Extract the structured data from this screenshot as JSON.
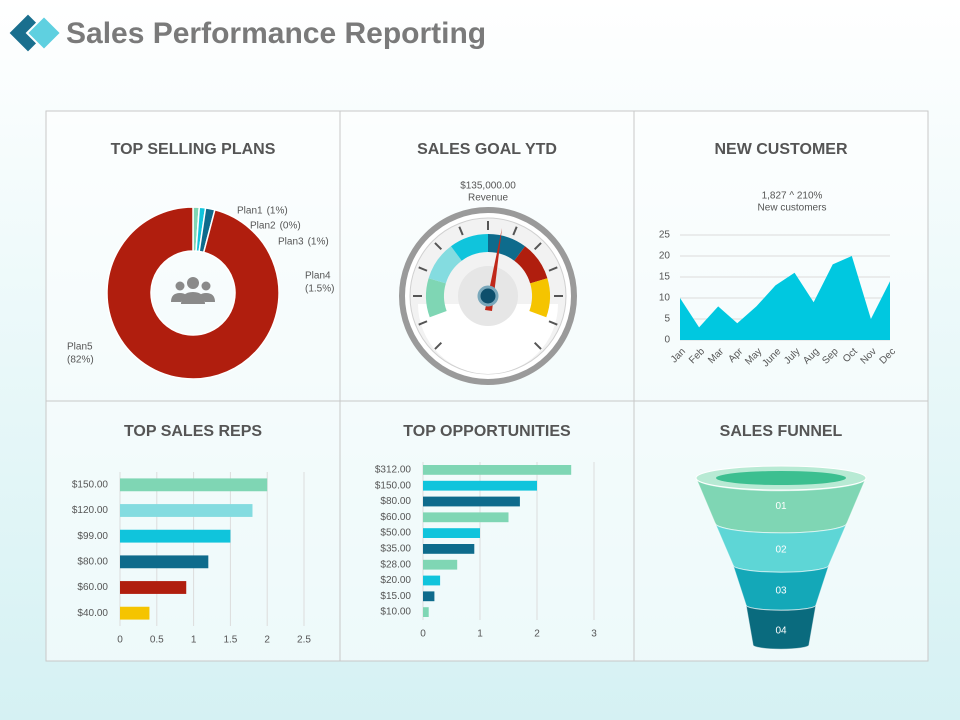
{
  "title": "Sales Performance Reporting",
  "chart_data": [
    {
      "type": "pie",
      "title": "TOP SELLING PLANS",
      "categories": [
        "Plan1",
        "Plan2",
        "Plan3",
        "Plan4",
        "Plan5"
      ],
      "values": [
        1,
        0,
        1,
        1.5,
        82
      ],
      "value_labels": [
        "(1%)",
        "(0%)",
        "(1%)",
        "(1.5%)",
        "(82%)"
      ],
      "colors": [
        "#7fd6b4",
        "#84dce0",
        "#10c4dc",
        "#0e6b8c",
        "#b01e0e"
      ]
    },
    {
      "type": "gauge",
      "title": "SALES GOAL YTD",
      "annotation": "$135,000.00",
      "label": "Revenue",
      "colors": [
        "#7fd6b4",
        "#84dce0",
        "#10c4dc",
        "#0e6b8c",
        "#b01e0e",
        "#f5c400"
      ]
    },
    {
      "type": "area",
      "title": "NEW CUSTOMER",
      "annotation": "1,827 ^ 210%",
      "label": "New customers",
      "categories": [
        "Jan",
        "Feb",
        "Mar",
        "Apr",
        "May",
        "June",
        "July",
        "Aug",
        "Sep",
        "Oct",
        "Nov",
        "Dec"
      ],
      "values": [
        10,
        3,
        8,
        4,
        8,
        13,
        16,
        9,
        18,
        20,
        5,
        14
      ],
      "color": "#00c8e0",
      "ylim": [
        0,
        25
      ],
      "yticks": [
        0,
        5,
        10,
        15,
        20,
        25
      ],
      "grid": true
    },
    {
      "type": "barh",
      "title": "TOP SALES REPS",
      "categories": [
        "$150.00",
        "$120.00",
        "$99.00",
        "$80.00",
        "$60.00",
        "$40.00"
      ],
      "values": [
        2,
        1.8,
        1.5,
        1.2,
        0.9,
        0.4
      ],
      "colors": [
        "#7fd6b4",
        "#84dce0",
        "#10c4dc",
        "#0e6b8c",
        "#b01e0e",
        "#f5c400"
      ],
      "xlim": [
        0,
        2.5
      ],
      "xticks": [
        0,
        0.5,
        1,
        1.5,
        2,
        2.5
      ],
      "grid": true
    },
    {
      "type": "barh",
      "title": "TOP OPPORTUNITIES",
      "categories": [
        "$312.00",
        "$150.00",
        "$80.00",
        "$60.00",
        "$50.00",
        "$35.00",
        "$28.00",
        "$20.00",
        "$15.00",
        "$10.00"
      ],
      "values": [
        2.6,
        2,
        1.7,
        1.5,
        1,
        0.9,
        0.6,
        0.3,
        0.2,
        0.1
      ],
      "colors": [
        "#7fd6b4",
        "#10c4dc",
        "#0e6b8c",
        "#7fd6b4",
        "#10c4dc",
        "#0e6b8c",
        "#7fd6b4",
        "#10c4dc",
        "#0e6b8c",
        "#7fd6b4"
      ],
      "xlim": [
        0,
        3
      ],
      "xticks": [
        0,
        1,
        2,
        3
      ],
      "grid": true
    },
    {
      "type": "funnel",
      "title": "SALES FUNNEL",
      "categories": [
        "01",
        "02",
        "03",
        "04"
      ],
      "colors": [
        "#7fd6b4",
        "#5ed6d6",
        "#14a8b8",
        "#0a6b7e"
      ]
    }
  ]
}
